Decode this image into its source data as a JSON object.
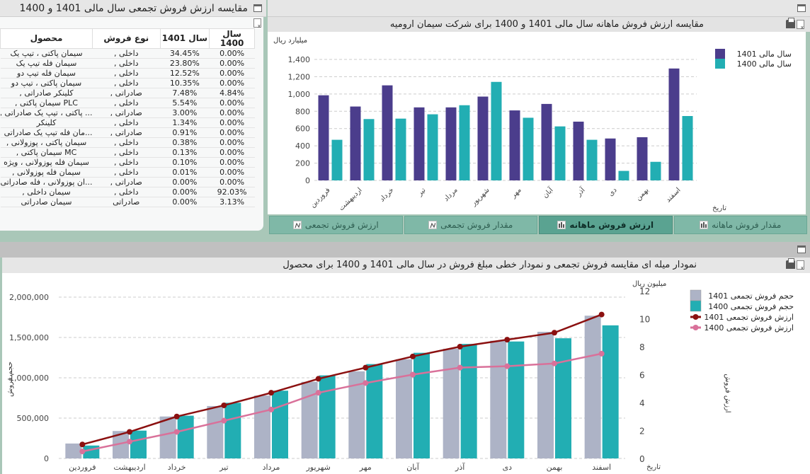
{
  "left_panel": {
    "title": "مقایسه ارزش فروش تجمعی سال مالی 1401 و 1400",
    "columns": {
      "product": "محصول",
      "type": "نوع فروش",
      "y1401": "سال 1401",
      "y1400": "سال 1400"
    },
    "rows": [
      {
        "product": "سیمان پاکتی ، تیپ یک",
        "type": "داخلی ,",
        "y1401": "34.45%",
        "y1400": "0.00%"
      },
      {
        "product": "سیمان فله تیپ یک",
        "type": "داخلی ,",
        "y1401": "23.80%",
        "y1400": "0.00%"
      },
      {
        "product": "سیمان فله تیپ دو",
        "type": "داخلی ,",
        "y1401": "12.52%",
        "y1400": "0.00%"
      },
      {
        "product": "سیمان پاکتی ، تیپ دو",
        "type": "داخلی ,",
        "y1401": "10.35%",
        "y1400": "0.00%"
      },
      {
        "product": "کلینکر صادراتی ,",
        "type": "صادراتی ,",
        "y1401": "7.48%",
        "y1400": "4.84%"
      },
      {
        "product": "PLC سیمان پاکتی ,",
        "type": "داخلی ,",
        "y1401": "5.54%",
        "y1400": "0.00%"
      },
      {
        "product": "... پاکتی ، تیپ یک صادراتی ,",
        "type": "صادراتی ,",
        "y1401": "3.00%",
        "y1400": "0.00%"
      },
      {
        "product": "کلینکر",
        "type": "داخلی ,",
        "y1401": "1.34%",
        "y1400": "0.00%"
      },
      {
        "product": "...مان فله تیپ یک صادراتی ,",
        "type": "صادراتی ,",
        "y1401": "0.91%",
        "y1400": "0.00%"
      },
      {
        "product": "سیمان پاکتی ، پوزولانی ,",
        "type": "داخلی ,",
        "y1401": "0.38%",
        "y1400": "0.00%"
      },
      {
        "product": "MC سیمان پاکتی ,",
        "type": "داخلی ,",
        "y1401": "0.13%",
        "y1400": "0.00%"
      },
      {
        "product": "سیمان فله پوزولانی ، ویژه",
        "type": "داخلی ,",
        "y1401": "0.10%",
        "y1400": "0.00%"
      },
      {
        "product": "سیمان فله پوزولانی ,",
        "type": "داخلی ,",
        "y1401": "0.01%",
        "y1400": "0.00%"
      },
      {
        "product": "...ان پوزولانی ، فله صادراتی ,",
        "type": "صادراتی ,",
        "y1401": "0.00%",
        "y1400": "0.00%"
      },
      {
        "product": "سیمان داخلی ,",
        "type": "داخلی ,",
        "y1401": "0.00%",
        "y1400": "92.03%"
      },
      {
        "product": "سیمان صادراتی",
        "type": "صادراتی",
        "y1401": "0.00%",
        "y1400": "3.13%"
      }
    ]
  },
  "top_chart_panel": {
    "title": "مقایسه ارزش فروش ماهانه سال مالی 1401 و 1400 برای شرکت سیمان ارومیه",
    "tabs": [
      {
        "label": "مقدار فروش ماهانه",
        "icon": "bar-chart-icon",
        "active": false
      },
      {
        "label": "ارزش فروش ماهانه",
        "icon": "bar-chart-icon",
        "active": true
      },
      {
        "label": "مقدار فروش تجمعی",
        "icon": "line-chart-icon",
        "active": false
      },
      {
        "label": "ارزش فروش تجمعی",
        "icon": "line-chart-icon",
        "active": false
      }
    ]
  },
  "bottom_panel": {
    "title": "نمودار میله ای مقایسه فروش تجمعی و نمودار خطی مبلغ فروش در سال مالی 1401 و 1400 برای محصول"
  },
  "colors": {
    "bar1401": "#4b3d8c",
    "bar1400": "#22aeb3",
    "vol1401": "#adb3c6",
    "vol1400": "#22aeb3",
    "line1401": "#8b1010",
    "line1400": "#d9719a"
  },
  "chart_data": [
    {
      "type": "bar",
      "title": "مقایسه ارزش فروش ماهانه سال مالی 1401 و 1400 برای شرکت سیمان ارومیه",
      "ylabel": "میلیارد ریال",
      "xlabel": "تاریخ",
      "ylim": [
        0,
        1400
      ],
      "yticks": [
        0,
        200,
        400,
        600,
        800,
        1000,
        1200,
        1400
      ],
      "grid": true,
      "legend_position": "top-right",
      "categories": [
        "فروردین",
        "اردیبهشت",
        "خرداد",
        "تیر",
        "مرداد",
        "شهریور",
        "مهر",
        "آبان",
        "آذر",
        "دی",
        "بهمن",
        "اسفند"
      ],
      "series": [
        {
          "name": "سال مالی 1401",
          "values": [
            985,
            855,
            1100,
            845,
            845,
            970,
            810,
            885,
            680,
            485,
            500,
            1295
          ]
        },
        {
          "name": "سال مالی 1400",
          "values": [
            470,
            710,
            715,
            765,
            870,
            1140,
            725,
            625,
            470,
            110,
            215,
            745
          ]
        }
      ]
    },
    {
      "type": "bar",
      "title": "نمودار میله ای مقایسه فروش تجمعی و نمودار خطی مبلغ فروش در سال مالی 1401 و 1400 برای محصول",
      "ylabel": "حجم فروش",
      "y2label": "ارزش فروش",
      "y2unit": "میلیون ریال",
      "xlabel": "تاریخ",
      "ylim": [
        0,
        2000000
      ],
      "yticks": [
        0,
        500000,
        1000000,
        1500000,
        2000000
      ],
      "y2lim": [
        0,
        12
      ],
      "y2ticks": [
        0,
        2,
        4,
        6,
        8,
        10,
        12
      ],
      "grid": true,
      "legend_position": "top-right",
      "categories": [
        "فروردین",
        "اردیبهشت",
        "خرداد",
        "تیر",
        "مرداد",
        "شهریور",
        "مهر",
        "آبان",
        "آذر",
        "دی",
        "بهمن",
        "اسفند"
      ],
      "series": [
        {
          "name": "حجم فروش تجمعی 1401",
          "kind": "bar",
          "axis": "left",
          "values": [
            185000,
            340000,
            520000,
            650000,
            780000,
            950000,
            1080000,
            1230000,
            1360000,
            1460000,
            1570000,
            1770000
          ]
        },
        {
          "name": "حجم فروش تجمعی 1400",
          "kind": "bar",
          "axis": "left",
          "values": [
            160000,
            345000,
            530000,
            690000,
            840000,
            1030000,
            1170000,
            1310000,
            1420000,
            1450000,
            1490000,
            1650000
          ]
        },
        {
          "name": "ارزش فروش تجمعی 1401",
          "kind": "line",
          "axis": "right",
          "values": [
            1.0,
            1.9,
            3.0,
            3.8,
            4.7,
            5.7,
            6.5,
            7.3,
            8.0,
            8.5,
            9.0,
            10.3
          ]
        },
        {
          "name": "ارزش فروش تجمعی 1400",
          "kind": "line",
          "axis": "right",
          "values": [
            0.5,
            1.2,
            1.9,
            2.7,
            3.5,
            4.7,
            5.4,
            6.0,
            6.5,
            6.6,
            6.8,
            7.5
          ]
        }
      ]
    }
  ]
}
